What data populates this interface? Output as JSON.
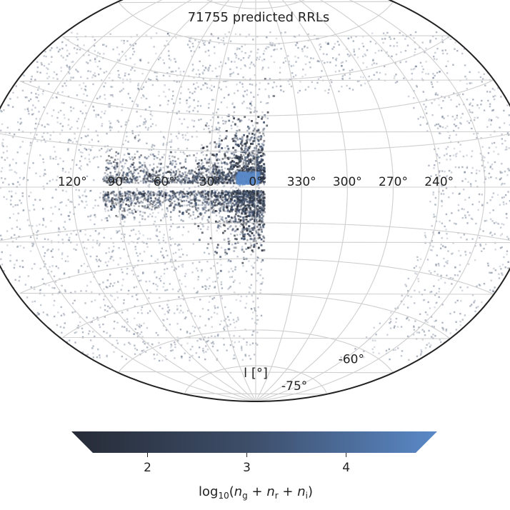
{
  "chart_data": [
    {
      "type": "heatmap",
      "title": "71755 predicted RRLs",
      "projection": "Aitoff-like all-sky map (Galactic longitude l, latitude b); partial view cropped at top and bottom",
      "xlabel": "l [°]",
      "x_ticks": [
        "120°",
        "90°",
        "60°",
        "30°",
        "0°",
        "330°",
        "300°",
        "270°",
        "240°"
      ],
      "x_tick_values": [
        120,
        90,
        60,
        30,
        0,
        330,
        300,
        270,
        240
      ],
      "y_ticks": [
        "-60°",
        "-75°"
      ],
      "y_tick_values": [
        -60,
        -75
      ],
      "lon_range": [
        -180,
        180
      ],
      "lat_range_shown": [
        -85,
        80
      ],
      "grid": true,
      "empty_region_description": "Large blank region of unobserved sky (southern celestial sky) east of l = 0°, from about l = 355° down to l = 240°",
      "density_features": [
        {
          "name": "Galactic bulge",
          "l_range": [
            -10,
            20
          ],
          "b_range": [
            -15,
            15
          ],
          "relative_density": "highest"
        },
        {
          "name": "Galactic disk",
          "l_range": [
            -10,
            100
          ],
          "b_range": [
            -5,
            5
          ],
          "relative_density": "high (with empty dust lane at b ≈ 0)"
        },
        {
          "name": "Halo",
          "l_range": [
            -180,
            180
          ],
          "b_range": [
            -80,
            80
          ],
          "relative_density": "low, diffuse"
        }
      ],
      "colormap": [
        "#262b36",
        "#3e4f6b",
        "#5a89c8"
      ]
    },
    {
      "type": "colorbar",
      "label": "log₁₀(n_g + n_r + n_i)",
      "range": [
        1.45,
        4.7
      ],
      "ticks": [
        2,
        3,
        4
      ],
      "extend": "both",
      "orientation": "horizontal"
    }
  ]
}
